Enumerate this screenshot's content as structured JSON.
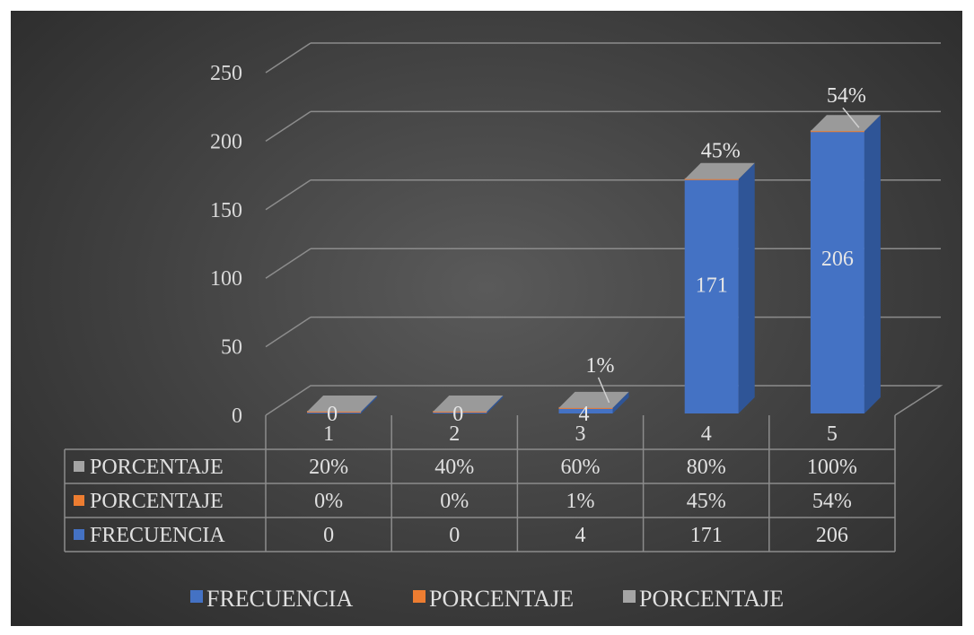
{
  "chart_data": {
    "type": "bar",
    "categories": [
      "1",
      "2",
      "3",
      "4",
      "5"
    ],
    "series": [
      {
        "name": "FRECUENCIA",
        "values": [
          0,
          0,
          4,
          171,
          206
        ],
        "display": [
          "0",
          "0",
          "4",
          "171",
          "206"
        ],
        "color": "#4472c4"
      },
      {
        "name": "PORCENTAJE",
        "values": [
          0,
          0,
          1,
          45,
          54
        ],
        "display": [
          "0%",
          "0%",
          "1%",
          "45%",
          "54%"
        ],
        "color": "#ed7d31"
      },
      {
        "name": "PORCENTAJE",
        "values": [
          20,
          40,
          60,
          80,
          100
        ],
        "display": [
          "20%",
          "40%",
          "60%",
          "80%",
          "100%"
        ],
        "color": "#a5a5a5"
      }
    ],
    "title": "",
    "xlabel": "",
    "ylabel": "",
    "ylim": [
      0,
      250
    ],
    "yticks": [
      0,
      50,
      100,
      150,
      200,
      250
    ],
    "ytick_labels": [
      "0",
      "50",
      "100",
      "150",
      "200",
      "250"
    ],
    "bar_labels": {
      "frecuencia": [
        "0",
        "0",
        "4",
        "171",
        "206"
      ],
      "top": [
        "",
        "",
        "1%",
        "45%",
        "54%"
      ]
    },
    "grid": true,
    "legend": "bottom",
    "data_table": true,
    "table_rows_order": [
      "PORCENTAJE",
      "PORCENTAJE",
      "FRECUENCIA"
    ]
  }
}
